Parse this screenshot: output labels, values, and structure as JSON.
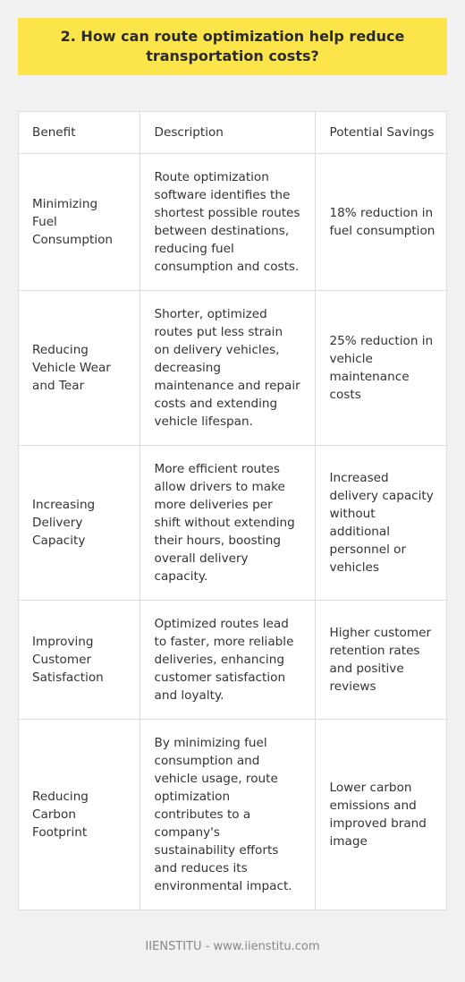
{
  "title": "2. How can route optimization help reduce transportation costs?",
  "table": {
    "headers": [
      "Benefit",
      "Description",
      "Potential Savings"
    ],
    "rows": [
      {
        "benefit": "Minimizing Fuel Consumption",
        "description": "Route optimization software identifies the shortest possible routes between destinations, reducing fuel consumption and costs.",
        "savings": "18% reduction in fuel consumption"
      },
      {
        "benefit": "Reducing Vehicle Wear and Tear",
        "description": "Shorter, optimized routes put less strain on delivery vehicles, decreasing maintenance and repair costs and extending vehicle lifespan.",
        "savings": "25% reduction in vehicle maintenance costs"
      },
      {
        "benefit": "Increasing Delivery Capacity",
        "description": "More efficient routes allow drivers to make more deliveries per shift without extending their hours, boosting overall delivery capacity.",
        "savings": "Increased delivery capacity without additional personnel or vehicles"
      },
      {
        "benefit": "Improving Customer Satisfaction",
        "description": "Optimized routes lead to faster, more reliable deliveries, enhancing customer satisfaction and loyalty.",
        "savings": "Higher customer retention rates and positive reviews"
      },
      {
        "benefit": "Reducing Carbon Footprint",
        "description": "By minimizing fuel consumption and vehicle usage, route optimization contributes to a company's sustainability efforts and reduces its environmental impact.",
        "savings": "Lower carbon emissions and improved brand image"
      }
    ]
  },
  "footer": "IIENSTITU - www.iienstitu.com",
  "colors": {
    "title_bg": "#fbe54a",
    "page_bg": "#f1f1f1",
    "table_bg": "#ffffff",
    "border": "#dddddd"
  }
}
